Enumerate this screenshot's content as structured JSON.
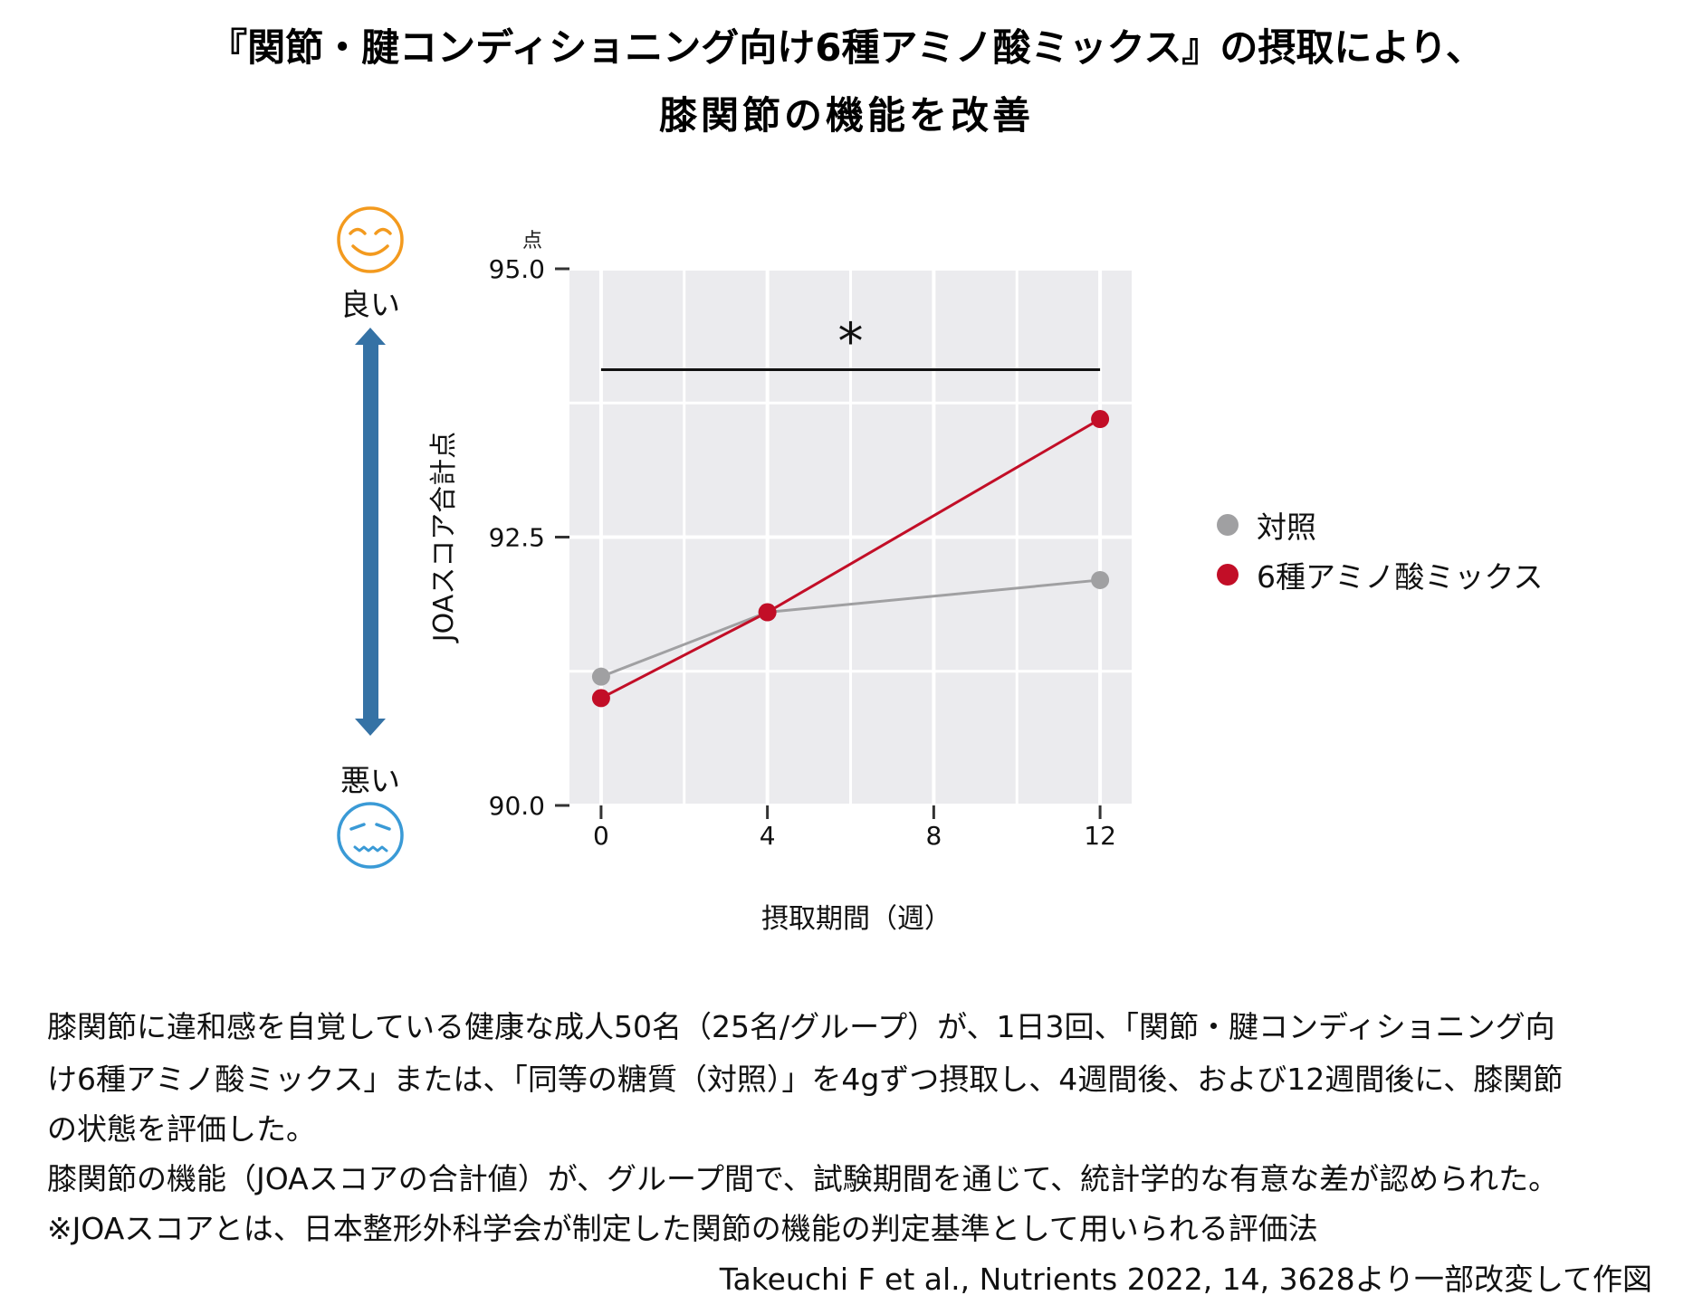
{
  "title": {
    "line1": "『関節・腱コンディショニング向け6種アミノ酸ミックス』の摂取により、",
    "line2": "膝関節の機能を改善"
  },
  "side_scale": {
    "good_label": "良い",
    "bad_label": "悪い",
    "good_icon": "smiling-face-icon",
    "bad_icon": "worried-face-icon",
    "arrow_icon": "double-arrow-vertical-icon",
    "good_color": "#F39A1E",
    "bad_color": "#3A9AD6",
    "arrow_color": "#3572A5"
  },
  "chart_data": {
    "type": "line",
    "title": "",
    "xlabel": "摂取期間（週）",
    "ylabel": "JOAスコア合計点",
    "y_unit": "点",
    "x": [
      0,
      4,
      12
    ],
    "x_ticks": [
      0,
      4,
      8,
      12
    ],
    "x_tick_labels": [
      "0",
      "4",
      "8",
      "12"
    ],
    "y_ticks": [
      90.0,
      92.5,
      95.0
    ],
    "y_tick_labels": [
      "90.0",
      "92.5",
      "95.0"
    ],
    "xlim": [
      -0.76,
      12.76
    ],
    "ylim": [
      90.0,
      95.0
    ],
    "grid": true,
    "panel_background": "#EBEBEE",
    "series": [
      {
        "name": "対照",
        "color": "#A0A0A2",
        "values": [
          91.2,
          91.8,
          92.1
        ]
      },
      {
        "name": "6種アミノ酸ミックス",
        "color": "#C20E27",
        "values": [
          91.0,
          91.8,
          93.6
        ]
      }
    ],
    "annotations": [
      {
        "type": "significance-bar",
        "x_start": 0,
        "x_end": 12,
        "y": 94.06,
        "label": "*"
      }
    ],
    "legend_position": "right"
  },
  "footer": {
    "lines": [
      "膝関節に違和感を自覚している健康な成人50名（25名/グループ）が、1日3回、「関節・腱コンディショニング向",
      "け6種アミノ酸ミックス」または、「同等の糖質（対照）」を4gずつ摂取し、4週間後、および12週間後に、膝関節",
      "の状態を評価した。",
      "膝関節の機能（JOAスコアの合計値）が、グループ間で、試験期間を通じて、統計学的な有意な差が認められた。",
      "※JOAスコアとは、日本整形外科学会が制定した関節の機能の判定基準として用いられる評価法"
    ],
    "citation": "Takeuchi F et al., Nutrients 2022, 14, 3628より一部改変して作図"
  }
}
